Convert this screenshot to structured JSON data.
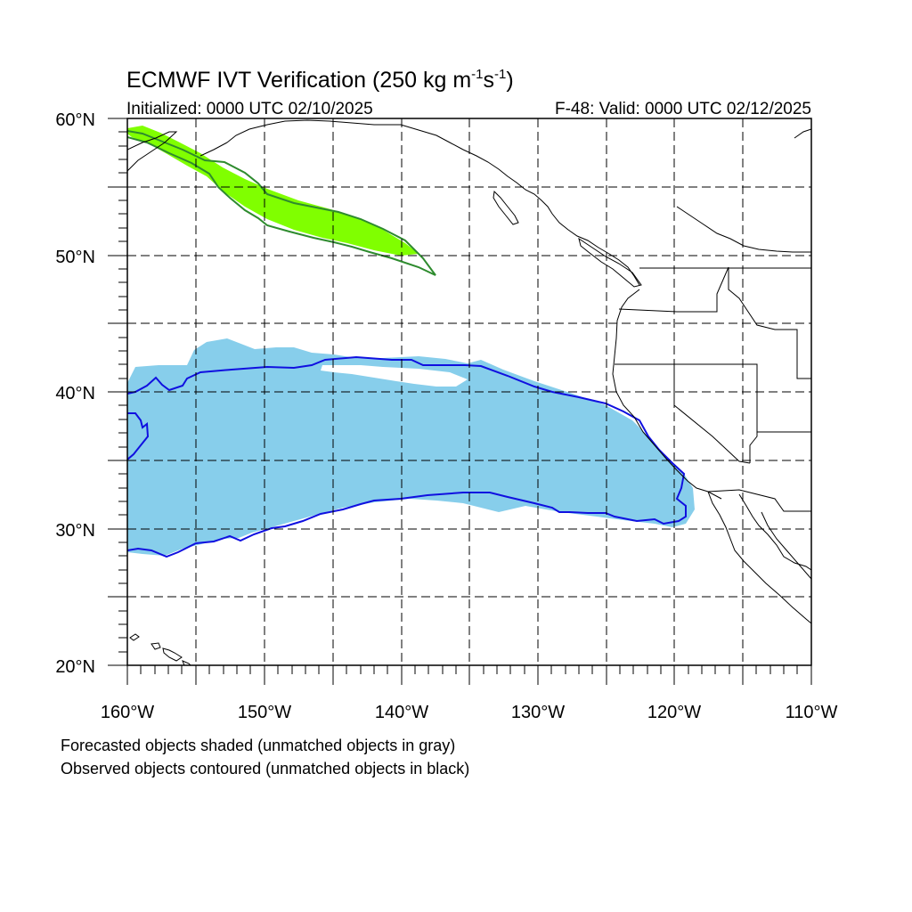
{
  "title": {
    "main": "ECMWF IVT Verification (250 kg m",
    "sup1": "-1",
    "mid": "s",
    "sup2": "-1",
    "end": ")"
  },
  "subtitle_left": "Initialized: 0000 UTC 02/10/2025",
  "subtitle_right": "F-48: Valid: 0000 UTC 02/12/2025",
  "lat_labels": [
    "60°N",
    "50°N",
    "40°N",
    "30°N",
    "20°N"
  ],
  "lon_labels": [
    "160°W",
    "150°W",
    "140°W",
    "130°W",
    "120°W",
    "110°W"
  ],
  "caption": [
    "Forecasted objects shaded (unmatched objects in gray)",
    "Observed objects contoured (unmatched objects in black)"
  ],
  "map": {
    "lon_range": [
      -160,
      -110
    ],
    "lat_range": [
      20,
      60
    ],
    "grid_interval_deg": 5,
    "grid": true
  },
  "colors": {
    "forecast_north": "#80ff00",
    "observed_north": "#2e8b2e",
    "forecast_south": "#87ceeb",
    "observed_south": "#1010e0",
    "coast": "#000000"
  }
}
